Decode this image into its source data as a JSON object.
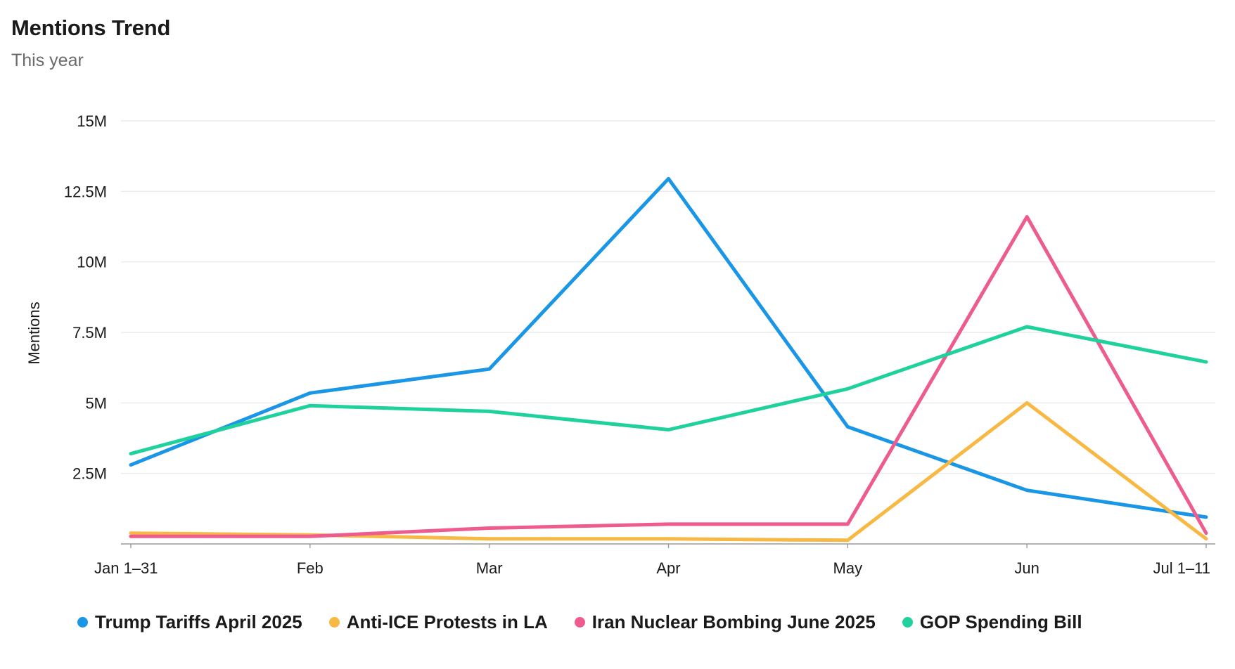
{
  "header": {
    "title": "Mentions Trend",
    "subtitle": "This year"
  },
  "chart_data": {
    "type": "line",
    "title": "Mentions Trend",
    "subtitle": "This year",
    "xlabel": "",
    "ylabel": "Mentions",
    "categories": [
      "Jan 1–31",
      "Feb",
      "Mar",
      "Apr",
      "May",
      "Jun",
      "Jul 1–11"
    ],
    "y_ticks": [
      2500000,
      5000000,
      7500000,
      10000000,
      12500000,
      15000000
    ],
    "y_tick_labels": [
      "2.5M",
      "5M",
      "7.5M",
      "10M",
      "12.5M",
      "15M"
    ],
    "ylim": [
      0,
      15000000
    ],
    "grid": true,
    "legend_position": "bottom",
    "series": [
      {
        "name": "Trump Tariffs April 2025",
        "color": "#1a96e6",
        "values": [
          2800000,
          5350000,
          6200000,
          12950000,
          4150000,
          1900000,
          950000
        ]
      },
      {
        "name": "Anti-ICE Protests in LA",
        "color": "#f7b844",
        "values": [
          380000,
          320000,
          180000,
          180000,
          130000,
          5000000,
          180000
        ]
      },
      {
        "name": "Iran Nuclear Bombing June 2025",
        "color": "#ee5b8e",
        "values": [
          270000,
          270000,
          560000,
          700000,
          700000,
          11600000,
          380000
        ]
      },
      {
        "name": "GOP Spending Bill",
        "color": "#1fd19c",
        "values": [
          3200000,
          4900000,
          4700000,
          4050000,
          5500000,
          7700000,
          6450000
        ]
      }
    ]
  }
}
